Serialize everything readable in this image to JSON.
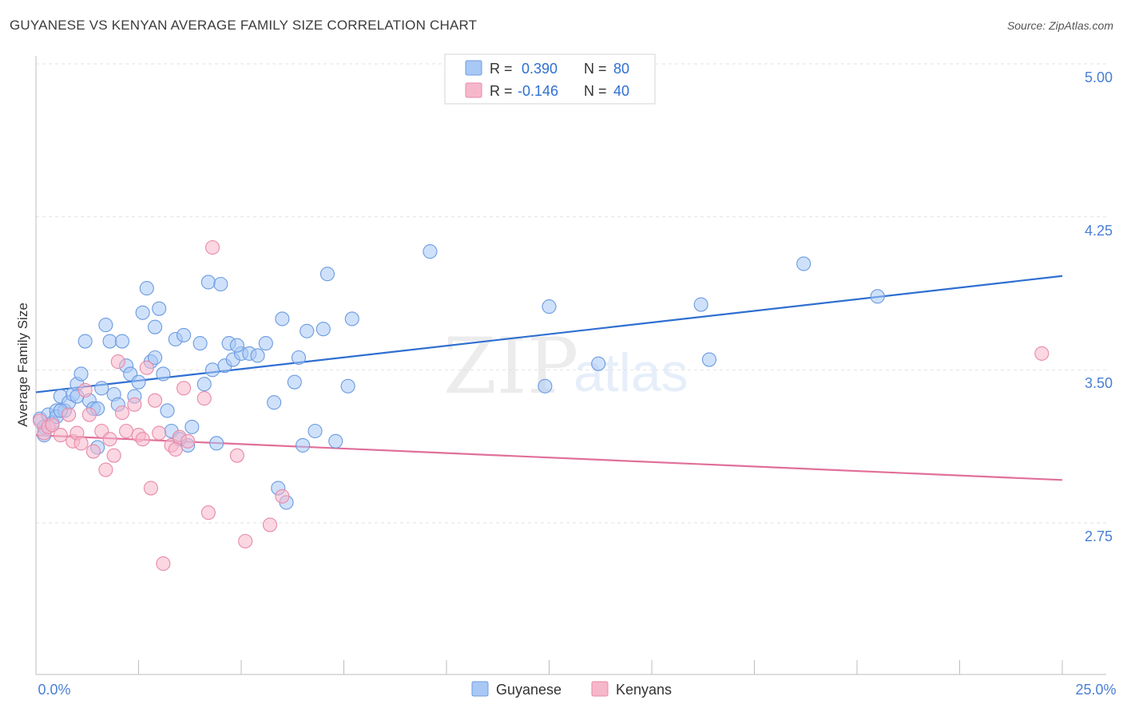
{
  "title": "GUYANESE VS KENYAN AVERAGE FAMILY SIZE CORRELATION CHART",
  "source": "Source: ZipAtlas.com",
  "watermark": {
    "zip": "ZIP",
    "atlas": "atlas"
  },
  "legend_top": [
    {
      "r_label": "R =",
      "r_value": "0.390",
      "n_label": "N =",
      "n_value": "80"
    },
    {
      "r_label": "R =",
      "r_value": "-0.146",
      "n_label": "N =",
      "n_value": "40"
    }
  ],
  "legend_bottom": [
    "Guyanese",
    "Kenyans"
  ],
  "colors": {
    "guyanese_fill": "#a8c8f5",
    "guyanese_stroke": "#6b9be0",
    "guyanese_line": "#2f6fd1",
    "kenyan_fill": "#f7b7cb",
    "kenyan_stroke": "#e88aa8",
    "kenyan_line": "#e0709a",
    "axis_text": "#4a7fd4",
    "grid": "#e2e2e2"
  },
  "chart_data": {
    "type": "scatter",
    "xlabel": "",
    "ylabel": "Average Family Size",
    "xlim": [
      0,
      25
    ],
    "ylim": [
      2.0,
      5.2
    ],
    "x_tick_labels": [
      {
        "value": 0,
        "label": "0.0%"
      },
      {
        "value": 25,
        "label": "25.0%"
      }
    ],
    "y_ticks": [
      {
        "value": 5.0,
        "label": "5.00"
      },
      {
        "value": 4.25,
        "label": "4.25"
      },
      {
        "value": 3.5,
        "label": "3.50"
      },
      {
        "value": 2.75,
        "label": "2.75"
      }
    ],
    "x_minor_ticks": [
      0,
      2.5,
      5,
      7.5,
      10,
      12.5,
      15,
      17.5,
      20,
      22.5,
      25
    ],
    "series": [
      {
        "name": "Guyanese",
        "R": 0.39,
        "N": 80,
        "trend": {
          "x": [
            0,
            25
          ],
          "y": [
            3.39,
            3.96
          ]
        },
        "points": [
          [
            0.1,
            3.26
          ],
          [
            0.2,
            3.22
          ],
          [
            0.3,
            3.28
          ],
          [
            0.4,
            3.24
          ],
          [
            0.5,
            3.3
          ],
          [
            0.5,
            3.27
          ],
          [
            0.6,
            3.37
          ],
          [
            0.7,
            3.3
          ],
          [
            0.8,
            3.34
          ],
          [
            0.9,
            3.38
          ],
          [
            1.0,
            3.43
          ],
          [
            1.1,
            3.48
          ],
          [
            1.2,
            3.64
          ],
          [
            1.3,
            3.35
          ],
          [
            1.4,
            3.31
          ],
          [
            1.5,
            3.31
          ],
          [
            1.6,
            3.41
          ],
          [
            1.7,
            3.72
          ],
          [
            1.8,
            3.64
          ],
          [
            1.9,
            3.38
          ],
          [
            2.0,
            3.33
          ],
          [
            2.1,
            3.64
          ],
          [
            2.2,
            3.52
          ],
          [
            2.3,
            3.48
          ],
          [
            2.4,
            3.37
          ],
          [
            2.5,
            3.44
          ],
          [
            2.6,
            3.78
          ],
          [
            2.7,
            3.9
          ],
          [
            2.8,
            3.54
          ],
          [
            2.9,
            3.71
          ],
          [
            3.0,
            3.8
          ],
          [
            3.1,
            3.48
          ],
          [
            3.2,
            3.3
          ],
          [
            3.3,
            3.2
          ],
          [
            3.4,
            3.65
          ],
          [
            3.5,
            3.16
          ],
          [
            3.6,
            3.67
          ],
          [
            3.7,
            3.13
          ],
          [
            3.8,
            3.22
          ],
          [
            4.0,
            3.63
          ],
          [
            4.1,
            3.43
          ],
          [
            4.2,
            3.93
          ],
          [
            4.3,
            3.5
          ],
          [
            4.4,
            3.14
          ],
          [
            4.5,
            3.92
          ],
          [
            4.6,
            3.52
          ],
          [
            4.7,
            3.63
          ],
          [
            4.8,
            3.55
          ],
          [
            5.0,
            3.58
          ],
          [
            5.2,
            3.58
          ],
          [
            5.4,
            3.57
          ],
          [
            5.6,
            3.63
          ],
          [
            5.8,
            3.34
          ],
          [
            5.9,
            2.92
          ],
          [
            6.0,
            3.75
          ],
          [
            6.1,
            2.85
          ],
          [
            6.3,
            3.44
          ],
          [
            6.4,
            3.56
          ],
          [
            6.5,
            3.13
          ],
          [
            6.6,
            3.69
          ],
          [
            6.8,
            3.2
          ],
          [
            7.0,
            3.7
          ],
          [
            7.1,
            3.97
          ],
          [
            7.3,
            3.15
          ],
          [
            7.6,
            3.42
          ],
          [
            7.7,
            3.75
          ],
          [
            9.6,
            4.08
          ],
          [
            12.4,
            3.42
          ],
          [
            12.5,
            3.81
          ],
          [
            13.7,
            3.53
          ],
          [
            16.2,
            3.82
          ],
          [
            16.4,
            3.55
          ],
          [
            18.7,
            4.02
          ],
          [
            20.5,
            3.86
          ],
          [
            0.2,
            3.18
          ],
          [
            1.5,
            3.12
          ],
          [
            2.9,
            3.56
          ],
          [
            4.9,
            3.62
          ],
          [
            0.6,
            3.3
          ],
          [
            1.0,
            3.37
          ]
        ]
      },
      {
        "name": "Kenyans",
        "R": -0.146,
        "N": 40,
        "trend": {
          "x": [
            0,
            25
          ],
          "y": [
            3.18,
            2.96
          ]
        },
        "points": [
          [
            0.1,
            3.25
          ],
          [
            0.2,
            3.19
          ],
          [
            0.3,
            3.22
          ],
          [
            0.4,
            3.23
          ],
          [
            0.6,
            3.18
          ],
          [
            0.8,
            3.28
          ],
          [
            0.9,
            3.15
          ],
          [
            1.0,
            3.19
          ],
          [
            1.1,
            3.14
          ],
          [
            1.2,
            3.4
          ],
          [
            1.3,
            3.28
          ],
          [
            1.4,
            3.1
          ],
          [
            1.6,
            3.2
          ],
          [
            1.7,
            3.01
          ],
          [
            1.8,
            3.16
          ],
          [
            1.9,
            3.08
          ],
          [
            2.0,
            3.54
          ],
          [
            2.1,
            3.29
          ],
          [
            2.2,
            3.2
          ],
          [
            2.4,
            3.33
          ],
          [
            2.5,
            3.18
          ],
          [
            2.6,
            3.16
          ],
          [
            2.7,
            3.51
          ],
          [
            2.8,
            2.92
          ],
          [
            2.9,
            3.35
          ],
          [
            3.0,
            3.19
          ],
          [
            3.1,
            2.55
          ],
          [
            3.3,
            3.13
          ],
          [
            3.4,
            3.11
          ],
          [
            3.5,
            3.17
          ],
          [
            3.6,
            3.41
          ],
          [
            3.7,
            3.15
          ],
          [
            4.1,
            3.36
          ],
          [
            4.2,
            2.8
          ],
          [
            4.3,
            4.1
          ],
          [
            4.9,
            3.08
          ],
          [
            5.1,
            2.66
          ],
          [
            5.7,
            2.74
          ],
          [
            6.0,
            2.88
          ],
          [
            24.5,
            3.58
          ]
        ]
      }
    ]
  }
}
